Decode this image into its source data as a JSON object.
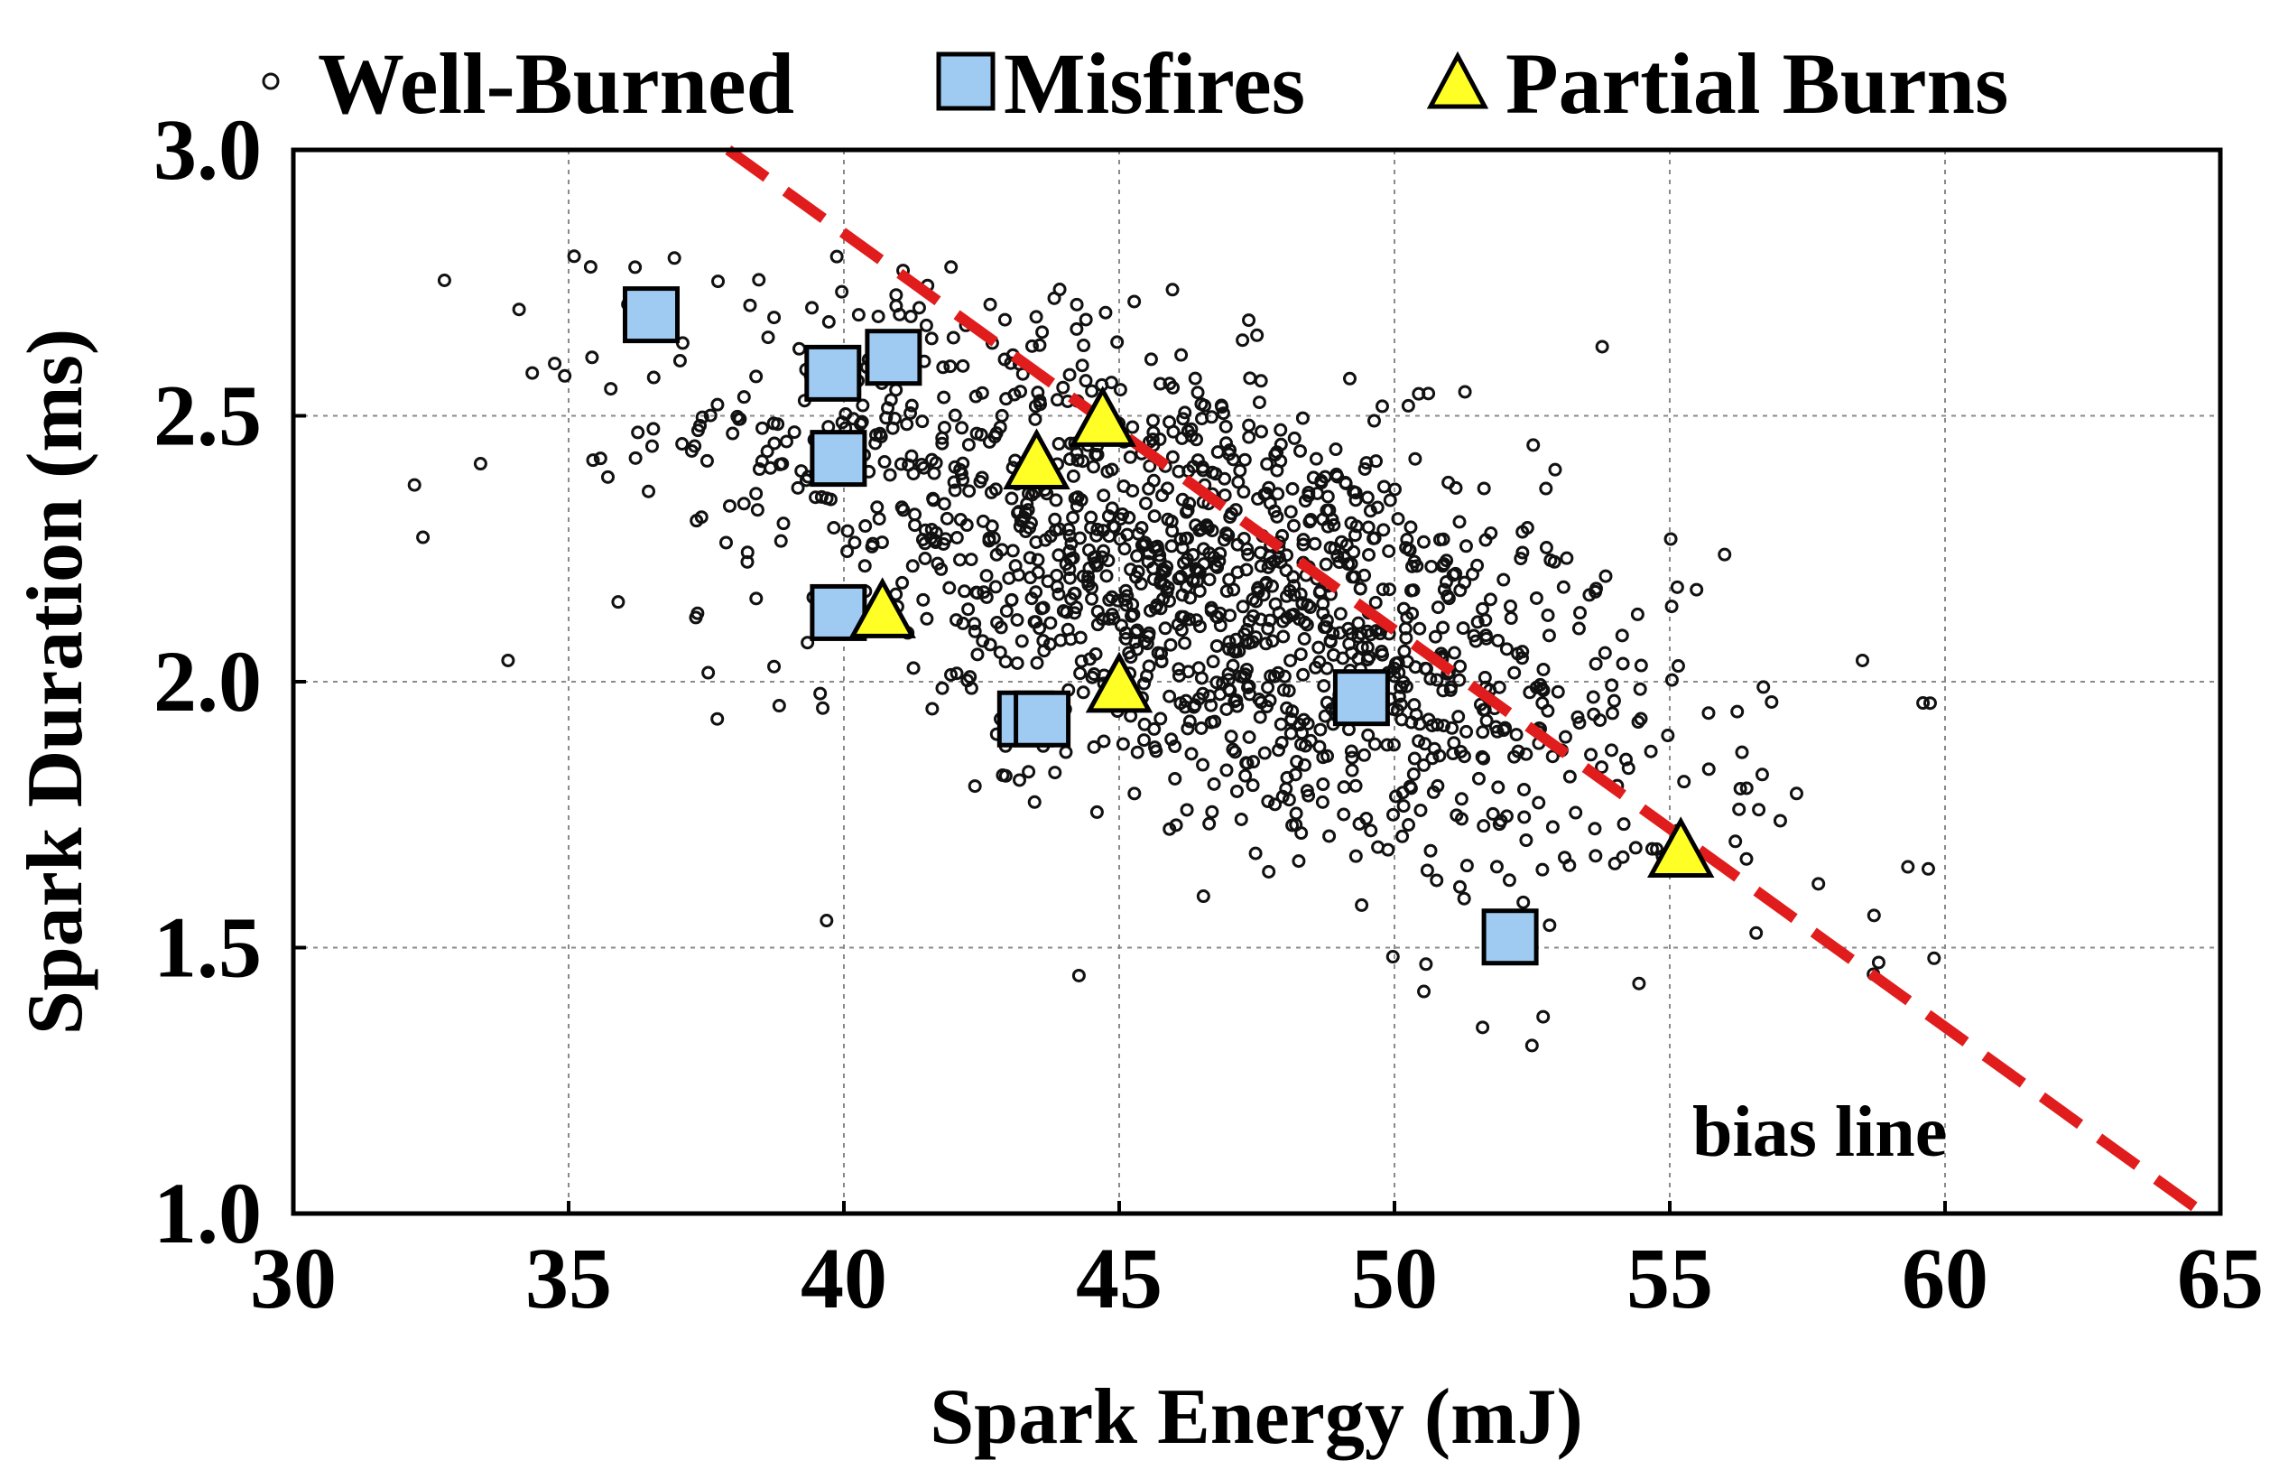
{
  "chart_data": {
    "type": "scatter",
    "title": "",
    "xlabel": "Spark Energy (mJ)",
    "ylabel": "Spark Duration (ms)",
    "xlim": [
      30,
      65
    ],
    "ylim": [
      1.0,
      3.0
    ],
    "xticks": [
      30,
      35,
      40,
      45,
      50,
      55,
      60,
      65
    ],
    "yticks": [
      1.0,
      1.5,
      2.0,
      2.5,
      3.0
    ],
    "xtick_labels": [
      "30",
      "35",
      "40",
      "45",
      "50",
      "55",
      "60",
      "65"
    ],
    "ytick_labels": [
      "1.0",
      "1.5",
      "2.0",
      "2.5",
      "3.0"
    ],
    "grid": true,
    "legend_position": "top",
    "series": [
      {
        "name": "Well-Burned",
        "marker": "small-open-circle",
        "color": "#111111",
        "distribution": {
          "count": 1400,
          "x_mean": 46.5,
          "x_sd": 4.4,
          "y_mean": 2.18,
          "y_sd": 0.27,
          "correlation": -0.62,
          "x_range": [
            32,
            60
          ],
          "y_range": [
            1.3,
            2.8
          ]
        },
        "points": [
          [
            32.2,
            2.37
          ],
          [
            33.4,
            2.41
          ],
          [
            33.9,
            2.04
          ],
          [
            34.1,
            2.7
          ],
          [
            35.1,
            2.8
          ],
          [
            35.4,
            2.78
          ],
          [
            35.9,
            2.15
          ],
          [
            37.7,
            1.93
          ],
          [
            56.7,
            1.99
          ],
          [
            58.5,
            2.04
          ],
          [
            59.6,
            1.96
          ],
          [
            59.8,
            1.48
          ],
          [
            58.7,
            1.45
          ],
          [
            51.6,
            1.35
          ],
          [
            52.7,
            1.37
          ],
          [
            57.7,
            1.62
          ]
        ]
      },
      {
        "name": "Misfires",
        "marker": "square",
        "color": "#9fcbf3",
        "points": [
          [
            36.5,
            2.69
          ],
          [
            39.8,
            2.58
          ],
          [
            40.9,
            2.61
          ],
          [
            39.9,
            2.42
          ],
          [
            39.9,
            2.13
          ],
          [
            43.3,
            1.93
          ],
          [
            43.6,
            1.93
          ],
          [
            49.4,
            1.97
          ],
          [
            52.1,
            1.52
          ]
        ]
      },
      {
        "name": "Partial Burns",
        "marker": "triangle",
        "color": "#ffff26",
        "points": [
          [
            44.7,
            2.49
          ],
          [
            43.5,
            2.41
          ],
          [
            40.7,
            2.13
          ],
          [
            45.0,
            1.99
          ],
          [
            55.2,
            1.68
          ]
        ]
      }
    ],
    "bias_line": {
      "label": "bias line",
      "color": "#e01c1c",
      "style": "dashed",
      "points": [
        [
          37.9,
          3.0
        ],
        [
          64.7,
          1.0
        ]
      ]
    }
  },
  "legend": {
    "items": [
      {
        "label": "Well-Burned",
        "marker": "circle"
      },
      {
        "label": "Misfires",
        "marker": "square"
      },
      {
        "label": "Partial Burns",
        "marker": "triangle"
      }
    ]
  },
  "annotation": {
    "text": "bias line"
  }
}
